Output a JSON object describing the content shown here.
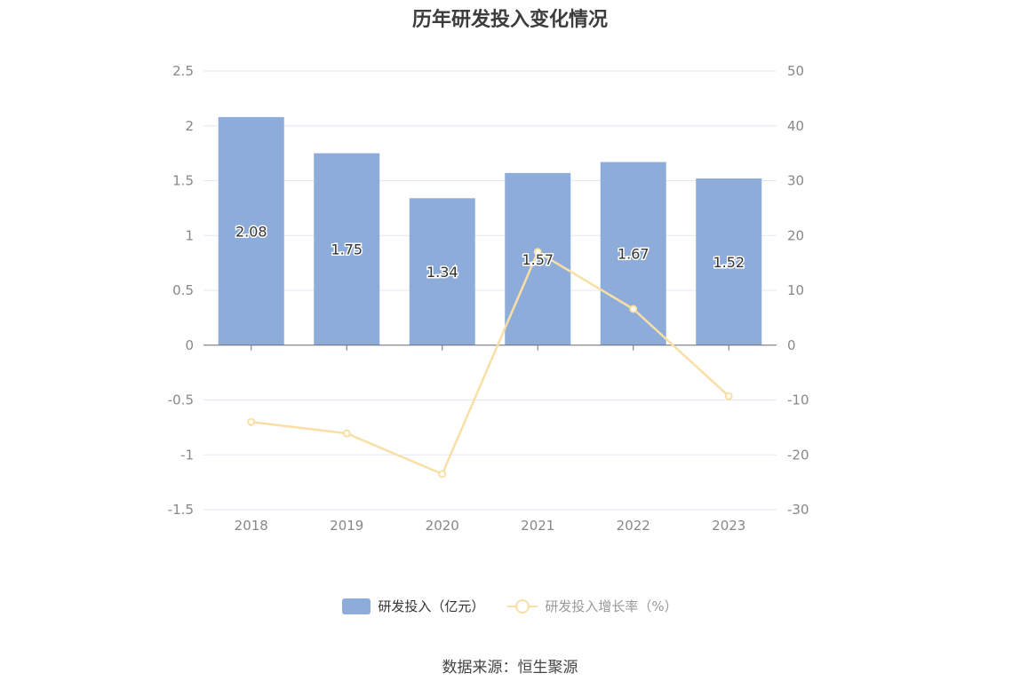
{
  "source": "数据来源：恒生聚源",
  "colors": {
    "bar": "#8eacda",
    "line": "#f9dfa5",
    "grid": "#e3e7f2",
    "axis": "#6e7079",
    "tick": "#888888"
  },
  "chart_data": {
    "type": "bar",
    "title": "历年研发投入变化情况",
    "categories": [
      "2018",
      "2019",
      "2020",
      "2021",
      "2022",
      "2023"
    ],
    "series": [
      {
        "name": "研发投入（亿元）",
        "type": "bar",
        "axis": "left",
        "values": [
          2.08,
          1.75,
          1.34,
          1.57,
          1.67,
          1.52
        ],
        "labels": [
          "2.08",
          "1.75",
          "1.34",
          "1.57",
          "1.67",
          "1.52"
        ]
      },
      {
        "name": "研发投入增长率（%）",
        "type": "line",
        "axis": "right",
        "values": [
          -14.0,
          -16.1,
          -23.5,
          17.0,
          6.6,
          -9.3
        ]
      }
    ],
    "y_left": {
      "min": -1.5,
      "max": 2.5,
      "ticks": [
        "2.5",
        "2",
        "1.5",
        "1",
        "0.5",
        "0",
        "-0.5",
        "-1",
        "-1.5"
      ]
    },
    "y_right": {
      "min": -30,
      "max": 50,
      "ticks": [
        "50",
        "40",
        "30",
        "20",
        "10",
        "0",
        "-10",
        "-20",
        "-30"
      ]
    },
    "grid": true,
    "legend": "bottom"
  }
}
